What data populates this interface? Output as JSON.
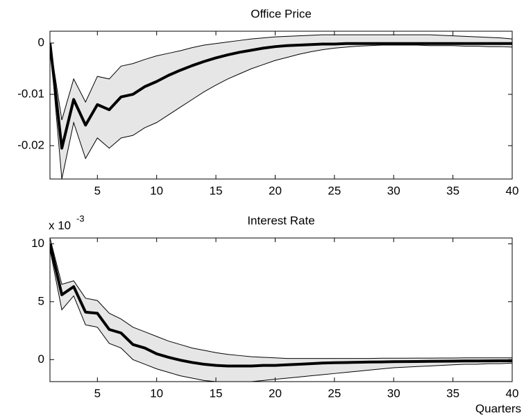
{
  "chart_data": [
    {
      "type": "line",
      "title": "Office Price",
      "color": "#000000",
      "band_color": "#e6e6e6",
      "x": [
        1,
        2,
        3,
        4,
        5,
        6,
        7,
        8,
        9,
        10,
        11,
        12,
        13,
        14,
        15,
        16,
        17,
        18,
        19,
        20,
        21,
        22,
        23,
        24,
        25,
        26,
        27,
        28,
        29,
        30,
        31,
        32,
        33,
        34,
        35,
        36,
        37,
        38,
        39,
        40
      ],
      "values": [
        0,
        -0.0205,
        -0.011,
        -0.016,
        -0.012,
        -0.013,
        -0.0105,
        -0.01,
        -0.0085,
        -0.0075,
        -0.0063,
        -0.0053,
        -0.0044,
        -0.0036,
        -0.0029,
        -0.0023,
        -0.0018,
        -0.0014,
        -0.001,
        -0.0007,
        -0.0005,
        -0.0004,
        -0.0003,
        -0.0002,
        -0.0002,
        -0.0001,
        -0.0001,
        -0.0001,
        -0.0001,
        -0.0001,
        -0.0001,
        -0.0001,
        -0.0001,
        -0.0001,
        -0.0001,
        -0.0001,
        -0.0001,
        -0.0001,
        -0.0001,
        -0.0001
      ],
      "band": {
        "upper": [
          0,
          -0.015,
          -0.007,
          -0.0115,
          -0.0065,
          -0.007,
          -0.0045,
          -0.004,
          -0.0032,
          -0.0025,
          -0.002,
          -0.0015,
          -0.0009,
          -0.0004,
          -0.0001,
          0.0002,
          0.0005,
          0.0008,
          0.001,
          0.0012,
          0.0013,
          0.0014,
          0.0015,
          0.0016,
          0.0016,
          0.0016,
          0.0016,
          0.0016,
          0.0016,
          0.0016,
          0.0016,
          0.0016,
          0.0016,
          0.0015,
          0.0014,
          0.0013,
          0.0012,
          0.0011,
          0.001,
          0.0008
        ],
        "lower": [
          0,
          -0.0265,
          -0.0155,
          -0.0225,
          -0.0185,
          -0.0205,
          -0.0185,
          -0.018,
          -0.0165,
          -0.0155,
          -0.014,
          -0.0125,
          -0.011,
          -0.0095,
          -0.0082,
          -0.007,
          -0.006,
          -0.005,
          -0.0042,
          -0.0034,
          -0.0028,
          -0.0022,
          -0.0017,
          -0.0013,
          -0.001,
          -0.0008,
          -0.0006,
          -0.0005,
          -0.0004,
          -0.0004,
          -0.0004,
          -0.0004,
          -0.0005,
          -0.0005,
          -0.0005,
          -0.0006,
          -0.0006,
          -0.0007,
          -0.0007,
          -0.0008
        ]
      },
      "xlim": [
        1,
        40
      ],
      "ylim": [
        -0.0265,
        0.0023
      ],
      "xticks": [
        5,
        10,
        15,
        20,
        25,
        30,
        35,
        40
      ],
      "yticks": [
        -0.02,
        -0.01,
        0
      ]
    },
    {
      "type": "line",
      "title": "Interest Rate",
      "color": "#000000",
      "band_color": "#e6e6e6",
      "y_scale_label": {
        "base": "x 10",
        "exponent": "-3"
      },
      "xlabel": "Quarters",
      "x": [
        1,
        2,
        3,
        4,
        5,
        6,
        7,
        8,
        9,
        10,
        11,
        12,
        13,
        14,
        15,
        16,
        17,
        18,
        19,
        20,
        21,
        22,
        23,
        24,
        25,
        26,
        27,
        28,
        29,
        30,
        31,
        32,
        33,
        34,
        35,
        36,
        37,
        38,
        39,
        40
      ],
      "values": [
        10,
        5.6,
        6.3,
        4.1,
        4.0,
        2.6,
        2.3,
        1.3,
        1.0,
        0.5,
        0.2,
        -0.05,
        -0.25,
        -0.4,
        -0.5,
        -0.55,
        -0.55,
        -0.55,
        -0.5,
        -0.5,
        -0.45,
        -0.4,
        -0.35,
        -0.3,
        -0.27,
        -0.25,
        -0.23,
        -0.21,
        -0.2,
        -0.18,
        -0.17,
        -0.16,
        -0.15,
        -0.14,
        -0.13,
        -0.12,
        -0.12,
        -0.11,
        -0.1,
        -0.1
      ],
      "band": {
        "upper": [
          10.5,
          6.5,
          6.8,
          5.3,
          5.1,
          4.0,
          3.5,
          2.8,
          2.4,
          2.0,
          1.6,
          1.3,
          1.0,
          0.8,
          0.6,
          0.45,
          0.35,
          0.25,
          0.2,
          0.15,
          0.1,
          0.1,
          0.1,
          0.1,
          0.1,
          0.1,
          0.1,
          0.1,
          0.12,
          0.12,
          0.12,
          0.13,
          0.13,
          0.14,
          0.14,
          0.15,
          0.15,
          0.15,
          0.15,
          0.15
        ],
        "lower": [
          9.5,
          4.3,
          5.5,
          3.0,
          2.8,
          1.4,
          1.0,
          0.0,
          -0.4,
          -0.8,
          -1.1,
          -1.4,
          -1.6,
          -1.8,
          -1.9,
          -2.0,
          -1.95,
          -1.9,
          -1.8,
          -1.7,
          -1.6,
          -1.5,
          -1.4,
          -1.3,
          -1.2,
          -1.1,
          -1.0,
          -0.9,
          -0.8,
          -0.7,
          -0.65,
          -0.6,
          -0.55,
          -0.5,
          -0.45,
          -0.4,
          -0.4,
          -0.35,
          -0.35,
          -0.3
        ]
      },
      "xlim": [
        1,
        40
      ],
      "ylim": [
        -1.9,
        10.5
      ],
      "xticks": [
        5,
        10,
        15,
        20,
        25,
        30,
        35,
        40
      ],
      "yticks": [
        0,
        5,
        10
      ]
    }
  ]
}
